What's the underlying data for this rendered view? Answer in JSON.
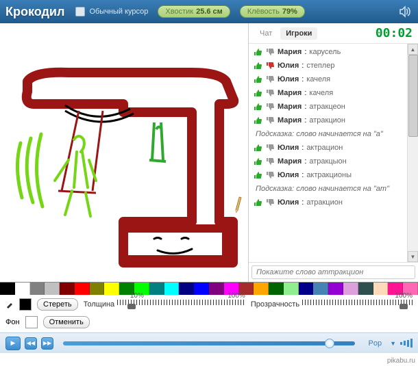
{
  "header": {
    "title": "Крокодил",
    "cursor_label": "Обычный курсор",
    "stat1_label": "Хвостик",
    "stat1_value": "25.6 см",
    "stat2_label": "Клёвость",
    "stat2_value": "79%"
  },
  "timer": "00:02",
  "tabs": {
    "chat": "Чат",
    "players": "Игроки"
  },
  "chat": [
    {
      "type": "guess",
      "up": "green",
      "down": "gray",
      "name": "Мария",
      "text": "карусель"
    },
    {
      "type": "guess",
      "up": "green",
      "down": "red",
      "name": "Юлия",
      "text": "степлер"
    },
    {
      "type": "guess",
      "up": "green",
      "down": "gray",
      "name": "Юлия",
      "text": "качеля"
    },
    {
      "type": "guess",
      "up": "green",
      "down": "gray",
      "name": "Мария",
      "text": "качеля"
    },
    {
      "type": "guess",
      "up": "green",
      "down": "gray",
      "name": "Мария",
      "text": "атракцеон"
    },
    {
      "type": "guess",
      "up": "green",
      "down": "gray",
      "name": "Мария",
      "text": "атракцион"
    },
    {
      "type": "hint",
      "text": "Подсказка: слово начинается на \"а\""
    },
    {
      "type": "guess",
      "up": "green",
      "down": "gray",
      "name": "Юлия",
      "text": "актрацион"
    },
    {
      "type": "guess",
      "up": "green",
      "down": "gray",
      "name": "Мария",
      "text": "атракцыон"
    },
    {
      "type": "guess",
      "up": "green",
      "down": "gray",
      "name": "Юлия",
      "text": "актракционы"
    },
    {
      "type": "hint",
      "text": "Подсказка: слово начинается на \"ат\""
    },
    {
      "type": "guess",
      "up": "green",
      "down": "gray",
      "name": "Юлия",
      "text": "атракцион"
    }
  ],
  "chat_placeholder": "Покажите слово аттракцион",
  "palette": [
    "#000000",
    "#ffffff",
    "#808080",
    "#c0c0c0",
    "#800000",
    "#ff0000",
    "#808000",
    "#ffff00",
    "#008000",
    "#00ff00",
    "#008080",
    "#00ffff",
    "#000080",
    "#0000ff",
    "#800080",
    "#ff00ff",
    "#a52a2a",
    "#ffa500",
    "#006400",
    "#90ee90",
    "#00008b",
    "#4682b4",
    "#9400d3",
    "#dda0dd",
    "#2f4f4f",
    "#ffdab9",
    "#ff1493",
    "#ff69b4"
  ],
  "tools": {
    "erase": "Стереть",
    "undo": "Отменить",
    "bg_label": "Фон",
    "thickness_label": "Толщина",
    "opacity_label": "Прозрачность",
    "pct_10": "10%",
    "pct_100a": "100%",
    "pct_100b": "100%",
    "current_color": "#000000",
    "bg_color": "#ffffff"
  },
  "music": {
    "genre": "Pop"
  },
  "watermark": "pikabu.ru"
}
